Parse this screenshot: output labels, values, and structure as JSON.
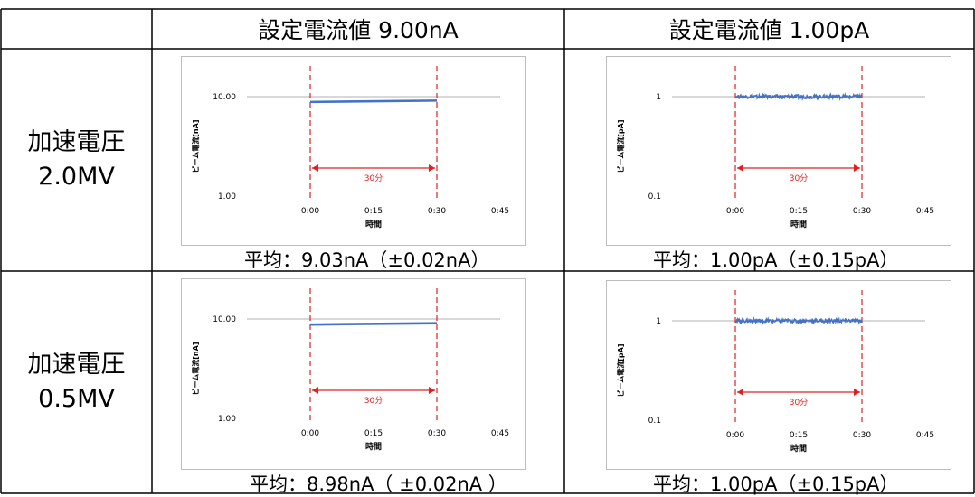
{
  "table": {
    "col_headers": [
      "設定電流値 9.00nA",
      "設定電流値 1.00pA"
    ],
    "row_labels": [
      {
        "line1": "加速電圧",
        "line2": "2.0MV"
      },
      {
        "line1": "加速電圧",
        "line2": "0.5MV"
      }
    ],
    "averages": [
      [
        "平均：9.03nA（±0.02nA）",
        "平均：1.00pA（±0.15pA）"
      ],
      [
        "平均：8.98nA（ ±0.02nA ）",
        "平均：1.00pA（±0.15pA）"
      ]
    ]
  },
  "colors": {
    "series": "#4472c4",
    "marker": "#e02020",
    "grid": "#b0b0b0",
    "border": "#bdbdbd"
  },
  "chart_data": [
    {
      "type": "line",
      "ylabel": "ビーム電流[nA]",
      "xlabel": "時間",
      "x_ticks": [
        "0:00",
        "0:15",
        "0:30",
        "0:45"
      ],
      "y_ticks": [
        "10.00",
        "1.00"
      ],
      "yscale": "log",
      "ylim": [
        1,
        10
      ],
      "series_value": 9.03,
      "noise": 0.0,
      "series_x_range": [
        "0:00",
        "0:30"
      ],
      "annotation": "30分",
      "markers": [
        "0:00",
        "0:30"
      ]
    },
    {
      "type": "line",
      "ylabel": "ビーム電流[pA]",
      "xlabel": "時間",
      "x_ticks": [
        "0:00",
        "0:15",
        "0:30",
        "0:45"
      ],
      "y_ticks": [
        "1",
        "0.1"
      ],
      "yscale": "log",
      "ylim": [
        0.1,
        1
      ],
      "series_value": 1.0,
      "noise": 0.15,
      "series_x_range": [
        "0:00",
        "0:30"
      ],
      "annotation": "30分",
      "markers": [
        "0:00",
        "0:30"
      ]
    },
    {
      "type": "line",
      "ylabel": "ビーム電流[nA]",
      "xlabel": "時間",
      "x_ticks": [
        "0:00",
        "0:15",
        "0:30",
        "0:45"
      ],
      "y_ticks": [
        "10.00",
        "1.00"
      ],
      "yscale": "log",
      "ylim": [
        1,
        10
      ],
      "series_value": 8.98,
      "noise": 0.0,
      "series_x_range": [
        "0:00",
        "0:30"
      ],
      "annotation": "30分",
      "markers": [
        "0:00",
        "0:30"
      ]
    },
    {
      "type": "line",
      "ylabel": "ビーム電流[pA]",
      "xlabel": "時間",
      "x_ticks": [
        "0:00",
        "0:15",
        "0:30",
        "0:45"
      ],
      "y_ticks": [
        "1",
        "0.1"
      ],
      "yscale": "log",
      "ylim": [
        0.1,
        1
      ],
      "series_value": 1.0,
      "noise": 0.15,
      "series_x_range": [
        "0:00",
        "0:30"
      ],
      "annotation": "30分",
      "markers": [
        "0:00",
        "0:30"
      ]
    }
  ]
}
